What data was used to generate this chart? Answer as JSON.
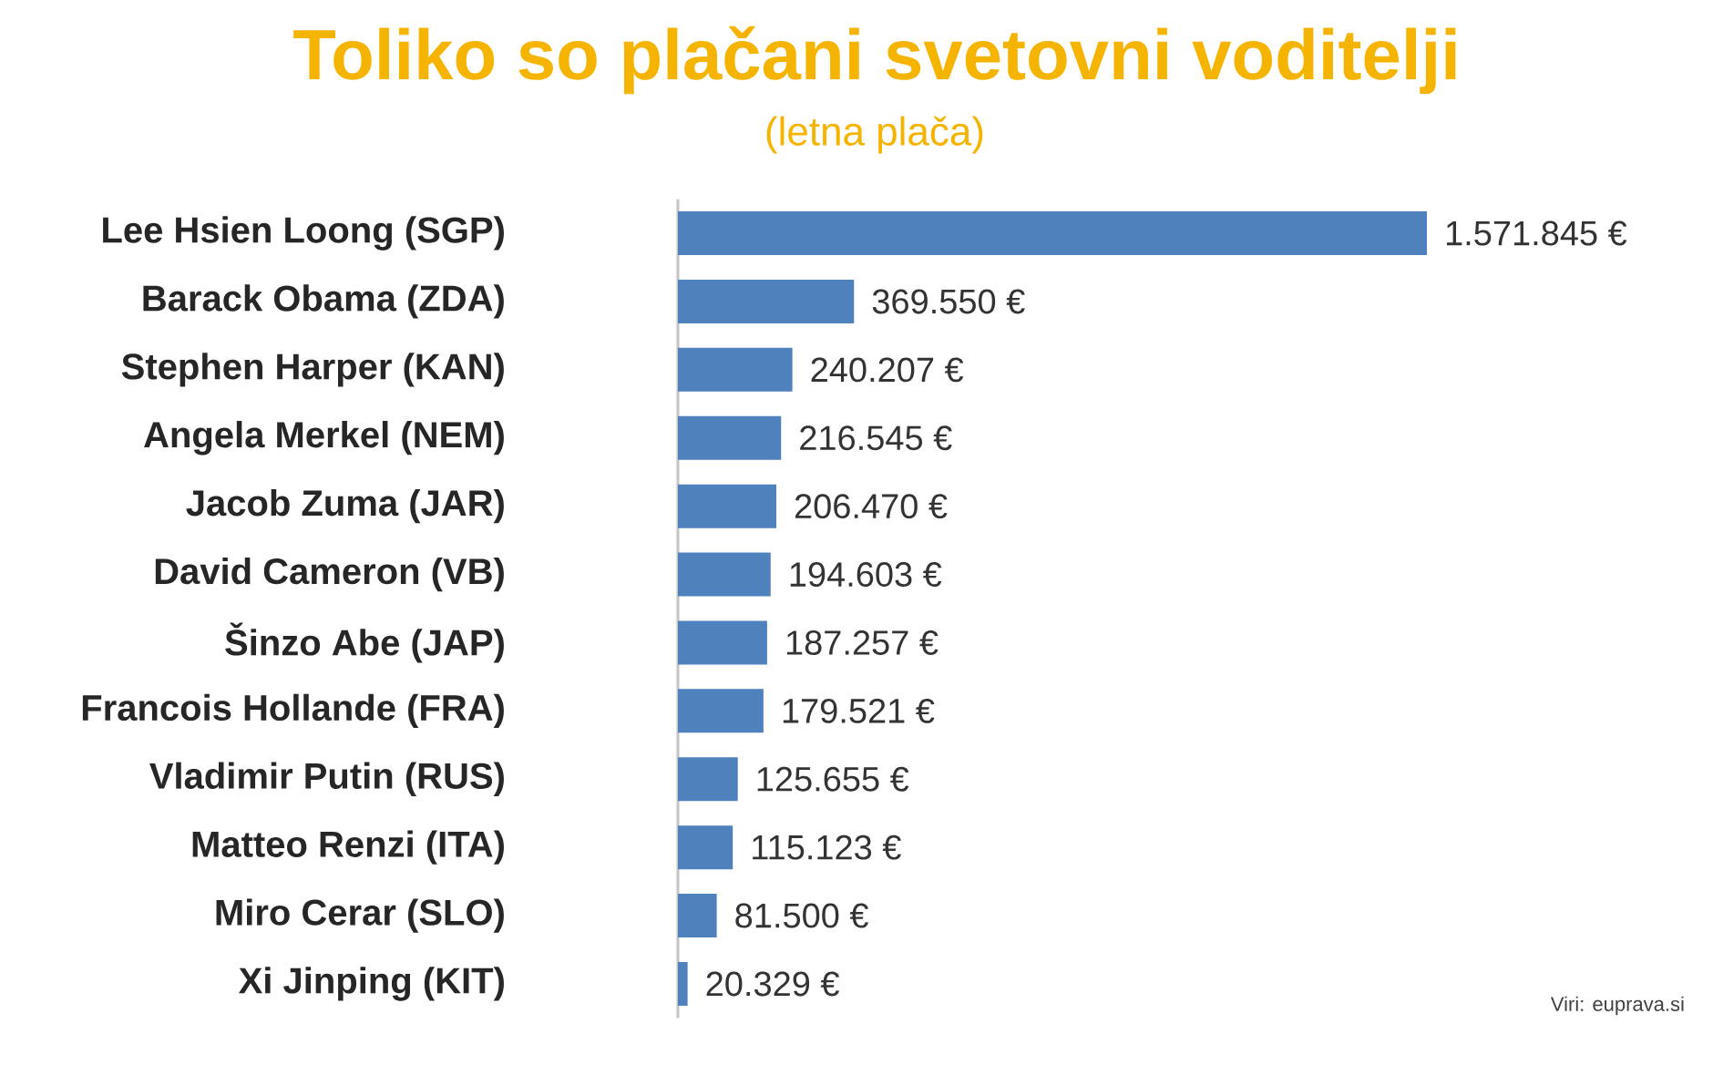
{
  "chart_data": {
    "type": "bar",
    "orientation": "horizontal",
    "title": "Toliko so plačani svetovni voditelji",
    "subtitle": "(letna plača)",
    "categories": [
      "Lee Hsien Loong (SGP)",
      "Barack Obama (ZDA)",
      "Stephen Harper (KAN)",
      "Angela Merkel (NEM)",
      "Jacob Zuma (JAR)",
      "David Cameron (VB)",
      "Šinzo Abe (JAP)",
      "Francois Hollande (FRA)",
      "Vladimir Putin (RUS)",
      "Matteo Renzi (ITA)",
      "Miro Cerar (SLO)",
      "Xi Jinping (KIT)"
    ],
    "values": [
      1571845,
      369550,
      240207,
      216545,
      206470,
      194603,
      187257,
      179521,
      125655,
      115123,
      81500,
      20329
    ],
    "value_labels": [
      "1.571.845 €",
      "369.550 €",
      "240.207 €",
      "216.545 €",
      "206.470 €",
      "194.603 €",
      "187.257 €",
      "179.521 €",
      "125.655 €",
      "115.123 €",
      "81.500 €",
      "20.329 €"
    ],
    "color": "#4f81bd",
    "annotations": [
      "Viri: euprava.si"
    ]
  }
}
